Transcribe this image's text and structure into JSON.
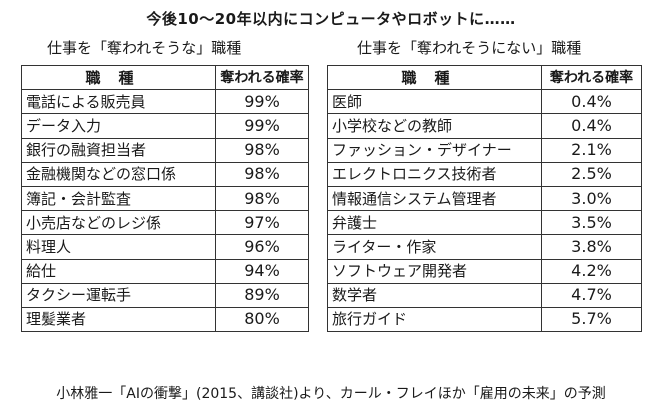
{
  "title": "今後10〜20年以内にコンピュータやロボットに……",
  "left_table": {
    "heading": "仕事を「奪われそうな」職種",
    "col_job": "職種",
    "col_rate": "奪われる確率",
    "rows": [
      {
        "job": "電話による販売員",
        "rate": "99%"
      },
      {
        "job": "データ入力",
        "rate": "99%"
      },
      {
        "job": "銀行の融資担当者",
        "rate": "98%"
      },
      {
        "job": "金融機関などの窓口係",
        "rate": "98%"
      },
      {
        "job": "簿記・会計監査",
        "rate": "98%"
      },
      {
        "job": "小売店などのレジ係",
        "rate": "97%"
      },
      {
        "job": "料理人",
        "rate": "96%"
      },
      {
        "job": "給仕",
        "rate": "94%"
      },
      {
        "job": "タクシー運転手",
        "rate": "89%"
      },
      {
        "job": "理髪業者",
        "rate": "80%"
      }
    ]
  },
  "right_table": {
    "heading": "仕事を「奪われそうにない」職種",
    "col_job": "職種",
    "col_rate": "奪われる確率",
    "rows": [
      {
        "job": "医師",
        "rate": "0.4%"
      },
      {
        "job": "小学校などの教師",
        "rate": "0.4%"
      },
      {
        "job": "ファッション・デザイナー",
        "rate": "2.1%"
      },
      {
        "job": "エレクトロニクス技術者",
        "rate": "2.5%"
      },
      {
        "job": "情報通信システム管理者",
        "rate": "3.0%"
      },
      {
        "job": "弁護士",
        "rate": "3.5%"
      },
      {
        "job": "ライター・作家",
        "rate": "3.8%"
      },
      {
        "job": "ソフトウェア開発者",
        "rate": "4.2%"
      },
      {
        "job": "数学者",
        "rate": "4.7%"
      },
      {
        "job": "旅行ガイド",
        "rate": "5.7%"
      }
    ]
  },
  "source": "小林雅一「AIの衝撃」(2015、講談社)より、カール・フレイほか「雇用の未来」の予測"
}
